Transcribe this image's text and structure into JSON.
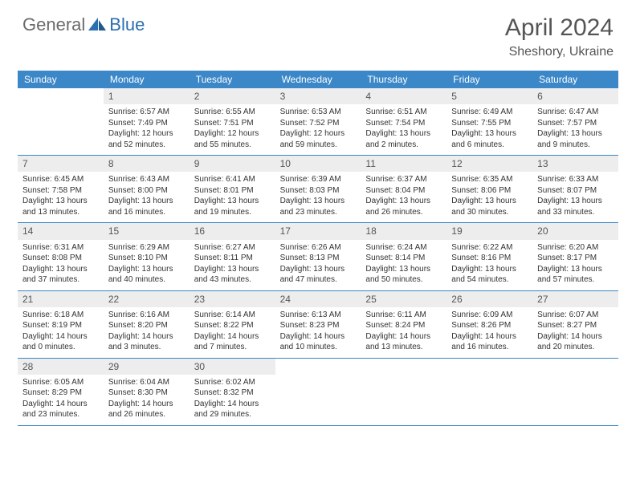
{
  "brand": {
    "part1": "General",
    "part2": "Blue"
  },
  "title": "April 2024",
  "location": "Sheshory, Ukraine",
  "colors": {
    "header_bg": "#3b87c8",
    "header_text": "#ffffff",
    "daynum_bg": "#ededed",
    "border": "#3b87c8",
    "logo_gray": "#6b6b6b",
    "logo_blue": "#2b6fb0",
    "text": "#333333"
  },
  "weekdays": [
    "Sunday",
    "Monday",
    "Tuesday",
    "Wednesday",
    "Thursday",
    "Friday",
    "Saturday"
  ],
  "start_offset": 1,
  "days": [
    {
      "n": 1,
      "sr": "6:57 AM",
      "ss": "7:49 PM",
      "dl": "12 hours and 52 minutes."
    },
    {
      "n": 2,
      "sr": "6:55 AM",
      "ss": "7:51 PM",
      "dl": "12 hours and 55 minutes."
    },
    {
      "n": 3,
      "sr": "6:53 AM",
      "ss": "7:52 PM",
      "dl": "12 hours and 59 minutes."
    },
    {
      "n": 4,
      "sr": "6:51 AM",
      "ss": "7:54 PM",
      "dl": "13 hours and 2 minutes."
    },
    {
      "n": 5,
      "sr": "6:49 AM",
      "ss": "7:55 PM",
      "dl": "13 hours and 6 minutes."
    },
    {
      "n": 6,
      "sr": "6:47 AM",
      "ss": "7:57 PM",
      "dl": "13 hours and 9 minutes."
    },
    {
      "n": 7,
      "sr": "6:45 AM",
      "ss": "7:58 PM",
      "dl": "13 hours and 13 minutes."
    },
    {
      "n": 8,
      "sr": "6:43 AM",
      "ss": "8:00 PM",
      "dl": "13 hours and 16 minutes."
    },
    {
      "n": 9,
      "sr": "6:41 AM",
      "ss": "8:01 PM",
      "dl": "13 hours and 19 minutes."
    },
    {
      "n": 10,
      "sr": "6:39 AM",
      "ss": "8:03 PM",
      "dl": "13 hours and 23 minutes."
    },
    {
      "n": 11,
      "sr": "6:37 AM",
      "ss": "8:04 PM",
      "dl": "13 hours and 26 minutes."
    },
    {
      "n": 12,
      "sr": "6:35 AM",
      "ss": "8:06 PM",
      "dl": "13 hours and 30 minutes."
    },
    {
      "n": 13,
      "sr": "6:33 AM",
      "ss": "8:07 PM",
      "dl": "13 hours and 33 minutes."
    },
    {
      "n": 14,
      "sr": "6:31 AM",
      "ss": "8:08 PM",
      "dl": "13 hours and 37 minutes."
    },
    {
      "n": 15,
      "sr": "6:29 AM",
      "ss": "8:10 PM",
      "dl": "13 hours and 40 minutes."
    },
    {
      "n": 16,
      "sr": "6:27 AM",
      "ss": "8:11 PM",
      "dl": "13 hours and 43 minutes."
    },
    {
      "n": 17,
      "sr": "6:26 AM",
      "ss": "8:13 PM",
      "dl": "13 hours and 47 minutes."
    },
    {
      "n": 18,
      "sr": "6:24 AM",
      "ss": "8:14 PM",
      "dl": "13 hours and 50 minutes."
    },
    {
      "n": 19,
      "sr": "6:22 AM",
      "ss": "8:16 PM",
      "dl": "13 hours and 54 minutes."
    },
    {
      "n": 20,
      "sr": "6:20 AM",
      "ss": "8:17 PM",
      "dl": "13 hours and 57 minutes."
    },
    {
      "n": 21,
      "sr": "6:18 AM",
      "ss": "8:19 PM",
      "dl": "14 hours and 0 minutes."
    },
    {
      "n": 22,
      "sr": "6:16 AM",
      "ss": "8:20 PM",
      "dl": "14 hours and 3 minutes."
    },
    {
      "n": 23,
      "sr": "6:14 AM",
      "ss": "8:22 PM",
      "dl": "14 hours and 7 minutes."
    },
    {
      "n": 24,
      "sr": "6:13 AM",
      "ss": "8:23 PM",
      "dl": "14 hours and 10 minutes."
    },
    {
      "n": 25,
      "sr": "6:11 AM",
      "ss": "8:24 PM",
      "dl": "14 hours and 13 minutes."
    },
    {
      "n": 26,
      "sr": "6:09 AM",
      "ss": "8:26 PM",
      "dl": "14 hours and 16 minutes."
    },
    {
      "n": 27,
      "sr": "6:07 AM",
      "ss": "8:27 PM",
      "dl": "14 hours and 20 minutes."
    },
    {
      "n": 28,
      "sr": "6:05 AM",
      "ss": "8:29 PM",
      "dl": "14 hours and 23 minutes."
    },
    {
      "n": 29,
      "sr": "6:04 AM",
      "ss": "8:30 PM",
      "dl": "14 hours and 26 minutes."
    },
    {
      "n": 30,
      "sr": "6:02 AM",
      "ss": "8:32 PM",
      "dl": "14 hours and 29 minutes."
    }
  ],
  "labels": {
    "sunrise": "Sunrise:",
    "sunset": "Sunset:",
    "daylight": "Daylight:"
  }
}
